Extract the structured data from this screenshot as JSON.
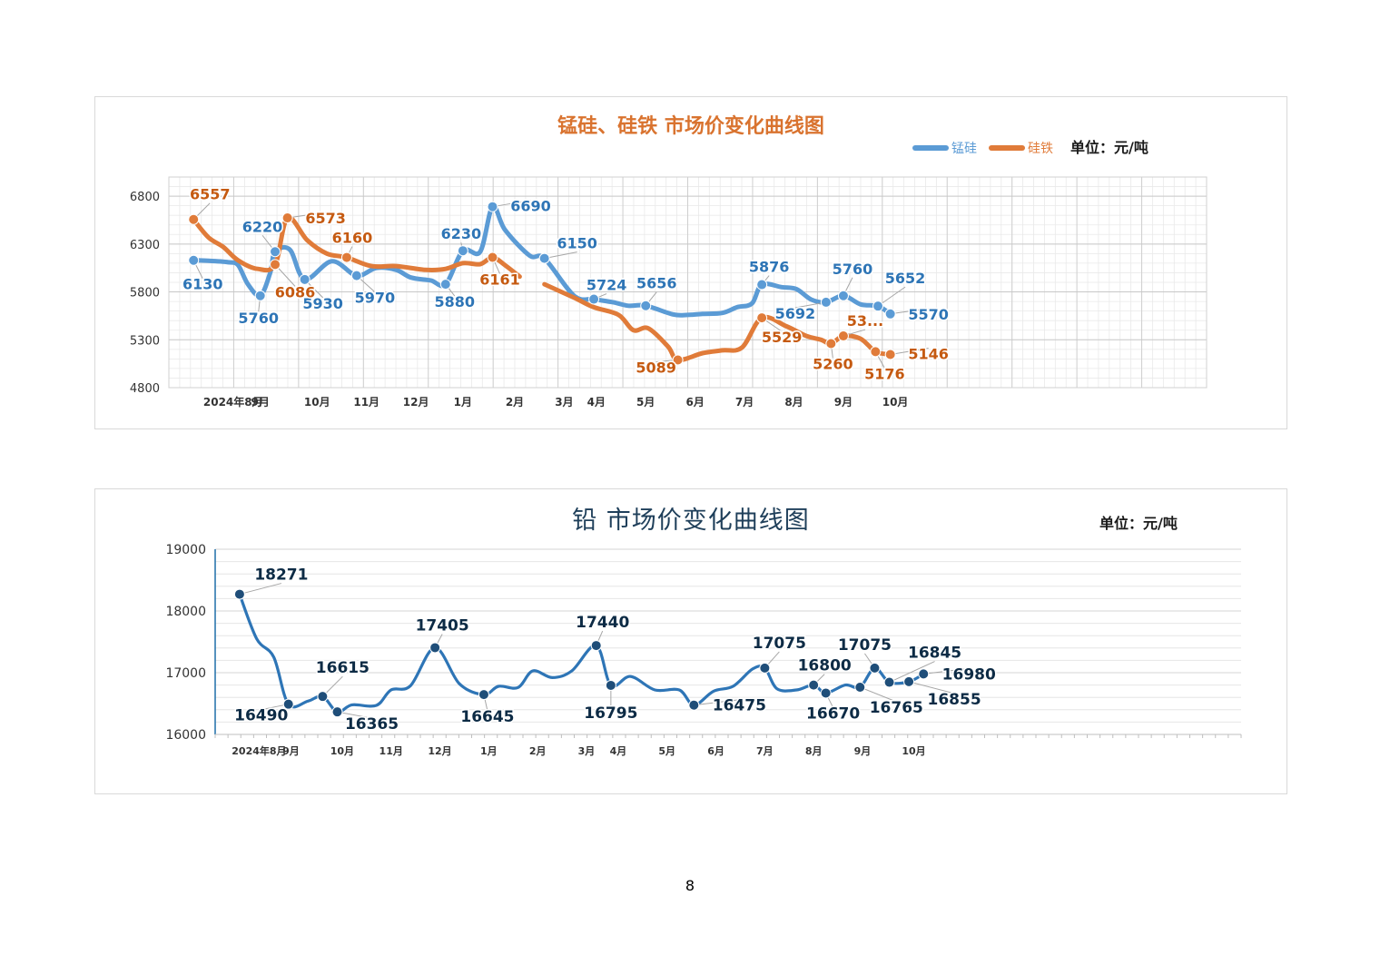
{
  "page_number": "8",
  "chart_data": [
    {
      "type": "line",
      "title": "锰硅、硅铁 市场价变化曲线图",
      "unit_label": "单位：元/吨",
      "legend_position": "top-right",
      "grid": true,
      "ylim": [
        4800,
        7000
      ],
      "yticks": [
        "6800",
        "6300",
        "5800",
        "5300",
        "4800"
      ],
      "xlim": [
        0,
        21
      ],
      "x_tick_labels": [
        {
          "x": 1.3,
          "label": "2024年8月"
        },
        {
          "x": 1.85,
          "label": "9月"
        },
        {
          "x": 3.0,
          "label": "10月"
        },
        {
          "x": 4.0,
          "label": "11月"
        },
        {
          "x": 5.0,
          "label": "12月"
        },
        {
          "x": 5.95,
          "label": "1月"
        },
        {
          "x": 7.0,
          "label": "2月"
        },
        {
          "x": 8.0,
          "label": "3月"
        },
        {
          "x": 8.65,
          "label": "4月"
        },
        {
          "x": 9.65,
          "label": "5月"
        },
        {
          "x": 10.65,
          "label": "6月"
        },
        {
          "x": 11.65,
          "label": "7月"
        },
        {
          "x": 12.65,
          "label": "8月"
        },
        {
          "x": 13.65,
          "label": "9月"
        },
        {
          "x": 14.7,
          "label": "10月"
        }
      ],
      "series": [
        {
          "name": "锰硅",
          "color": "#5b9bd5",
          "label_color": "#2e75b6",
          "points": [
            [
              0.5,
              6130
            ],
            [
              0.8,
              6125
            ],
            [
              1.2,
              6110
            ],
            [
              1.4,
              6080
            ],
            [
              1.6,
              5880
            ],
            [
              1.85,
              5760
            ],
            [
              2.05,
              6000
            ],
            [
              2.15,
              6220
            ],
            [
              2.45,
              6240
            ],
            [
              2.75,
              5930
            ],
            [
              3.3,
              6120
            ],
            [
              3.8,
              5970
            ],
            [
              4.2,
              6050
            ],
            [
              4.6,
              6030
            ],
            [
              4.9,
              5950
            ],
            [
              5.3,
              5920
            ],
            [
              5.6,
              5880
            ],
            [
              5.95,
              6230
            ],
            [
              6.3,
              6220
            ],
            [
              6.55,
              6690
            ],
            [
              6.8,
              6450
            ],
            [
              7.3,
              6180
            ],
            [
              7.6,
              6150
            ],
            [
              8.2,
              5760
            ],
            [
              8.6,
              5724
            ],
            [
              9.0,
              5690
            ],
            [
              9.3,
              5655
            ],
            [
              9.65,
              5656
            ],
            [
              10.2,
              5565
            ],
            [
              10.5,
              5560
            ],
            [
              10.8,
              5570
            ],
            [
              11.2,
              5580
            ],
            [
              11.5,
              5640
            ],
            [
              11.8,
              5680
            ],
            [
              12.0,
              5876
            ],
            [
              12.4,
              5850
            ],
            [
              12.7,
              5830
            ],
            [
              13.0,
              5720
            ],
            [
              13.3,
              5692
            ],
            [
              13.65,
              5760
            ],
            [
              14.0,
              5670
            ],
            [
              14.35,
              5652
            ],
            [
              14.6,
              5570
            ]
          ],
          "labels": [
            {
              "x": 0.5,
              "y": 6130,
              "text": "6130",
              "dx": 10,
              "dy": 32
            },
            {
              "x": 1.85,
              "y": 5760,
              "text": "5760",
              "dx": -2,
              "dy": 30
            },
            {
              "x": 2.15,
              "y": 6220,
              "text": "6220",
              "dx": -14,
              "dy": -22
            },
            {
              "x": 2.75,
              "y": 5930,
              "text": "5930",
              "dx": 20,
              "dy": 32
            },
            {
              "x": 3.8,
              "y": 5970,
              "text": "5970",
              "dx": 20,
              "dy": 30
            },
            {
              "x": 5.6,
              "y": 5880,
              "text": "5880",
              "dx": 10,
              "dy": 25
            },
            {
              "x": 5.95,
              "y": 6230,
              "text": "6230",
              "dx": -2,
              "dy": -13
            },
            {
              "x": 6.55,
              "y": 6690,
              "text": "6690",
              "dx": 42,
              "dy": 5
            },
            {
              "x": 7.6,
              "y": 6150,
              "text": "6150",
              "dx": 36,
              "dy": -11
            },
            {
              "x": 8.6,
              "y": 5724,
              "text": "5724",
              "dx": 14,
              "dy": -10
            },
            {
              "x": 9.65,
              "y": 5656,
              "text": "5656",
              "dx": 12,
              "dy": -19
            },
            {
              "x": 12.0,
              "y": 5876,
              "text": "5876",
              "dx": 8,
              "dy": -14
            },
            {
              "x": 13.3,
              "y": 5692,
              "text": "5692",
              "dx": -34,
              "dy": 18
            },
            {
              "x": 13.65,
              "y": 5760,
              "text": "5760",
              "dx": 10,
              "dy": -24
            },
            {
              "x": 14.35,
              "y": 5652,
              "text": "5652",
              "dx": 30,
              "dy": -25
            },
            {
              "x": 14.6,
              "y": 5570,
              "text": "5570",
              "dx": 42,
              "dy": 6
            }
          ],
          "markers": [
            0.5,
            1.85,
            2.15,
            2.75,
            3.8,
            5.6,
            5.95,
            6.55,
            7.6,
            8.6,
            9.65,
            12.0,
            13.3,
            13.65,
            14.35,
            14.6
          ]
        },
        {
          "name": "硅铁",
          "color": "#e07b39",
          "label_color": "#c55a11",
          "segments": [
            [
              [
                0.5,
                6557
              ],
              [
                0.8,
                6370
              ],
              [
                1.1,
                6270
              ],
              [
                1.4,
                6130
              ],
              [
                1.8,
                6040
              ],
              [
                2.15,
                6086
              ],
              [
                2.4,
                6573
              ],
              [
                2.8,
                6340
              ],
              [
                3.2,
                6200
              ],
              [
                3.6,
                6160
              ],
              [
                4.1,
                6070
              ],
              [
                4.6,
                6070
              ],
              [
                5.2,
                6030
              ],
              [
                5.6,
                6040
              ],
              [
                5.95,
                6100
              ],
              [
                6.3,
                6090
              ],
              [
                6.55,
                6161
              ],
              [
                6.8,
                6080
              ],
              [
                7.1,
                5960
              ]
            ],
            [
              [
                7.6,
                5880
              ],
              [
                8.2,
                5740
              ],
              [
                8.6,
                5640
              ],
              [
                9.1,
                5560
              ],
              [
                9.4,
                5400
              ],
              [
                9.7,
                5420
              ],
              [
                10.1,
                5230
              ],
              [
                10.3,
                5089
              ],
              [
                10.8,
                5160
              ],
              [
                11.2,
                5190
              ],
              [
                11.6,
                5220
              ],
              [
                12.0,
                5529
              ],
              [
                12.5,
                5440
              ],
              [
                12.9,
                5340
              ],
              [
                13.2,
                5300
              ],
              [
                13.4,
                5260
              ],
              [
                13.65,
                5340
              ],
              [
                14.0,
                5310
              ],
              [
                14.3,
                5176
              ],
              [
                14.6,
                5146
              ]
            ]
          ],
          "labels": [
            {
              "x": 0.5,
              "y": 6557,
              "text": "6557",
              "dx": 18,
              "dy": -22
            },
            {
              "x": 2.15,
              "y": 6086,
              "text": "6086",
              "dx": 22,
              "dy": 36
            },
            {
              "x": 2.4,
              "y": 6573,
              "text": "6573",
              "dx": 42,
              "dy": 6
            },
            {
              "x": 3.6,
              "y": 6160,
              "text": "6160",
              "dx": 6,
              "dy": -16
            },
            {
              "x": 6.55,
              "y": 6161,
              "text": "6161",
              "dx": 8,
              "dy": 30
            },
            {
              "x": 10.3,
              "y": 5089,
              "text": "5089",
              "dx": -24,
              "dy": 14
            },
            {
              "x": 12.0,
              "y": 5529,
              "text": "5529",
              "dx": 22,
              "dy": 27
            },
            {
              "x": 13.4,
              "y": 5260,
              "text": "5260",
              "dx": 2,
              "dy": 28
            },
            {
              "x": 13.65,
              "y": 5340,
              "text": "53...",
              "dx": 24,
              "dy": -11
            },
            {
              "x": 14.3,
              "y": 5176,
              "text": "5176",
              "dx": 10,
              "dy": 30
            },
            {
              "x": 14.6,
              "y": 5146,
              "text": "5146",
              "dx": 42,
              "dy": 5
            }
          ],
          "markers": [
            0.5,
            2.15,
            2.4,
            3.6,
            6.55,
            10.3,
            12.0,
            13.4,
            13.65,
            14.3,
            14.6
          ]
        }
      ]
    },
    {
      "type": "line",
      "title": "铅 市场价变化曲线图",
      "unit_label": "单位：元/吨",
      "grid": true,
      "ylim": [
        16000,
        19000
      ],
      "yticks": [
        "19000",
        "18000",
        "17000",
        "16000"
      ],
      "xlim": [
        0,
        21
      ],
      "x_tick_labels": [
        {
          "x": 0.9,
          "label": "2024年8月"
        },
        {
          "x": 1.55,
          "label": "9月"
        },
        {
          "x": 2.6,
          "label": "10月"
        },
        {
          "x": 3.6,
          "label": "11月"
        },
        {
          "x": 4.6,
          "label": "12月"
        },
        {
          "x": 5.6,
          "label": "1月"
        },
        {
          "x": 6.6,
          "label": "2月"
        },
        {
          "x": 7.6,
          "label": "3月"
        },
        {
          "x": 8.25,
          "label": "4月"
        },
        {
          "x": 9.25,
          "label": "5月"
        },
        {
          "x": 10.25,
          "label": "6月"
        },
        {
          "x": 11.25,
          "label": "7月"
        },
        {
          "x": 12.25,
          "label": "8月"
        },
        {
          "x": 13.25,
          "label": "9月"
        },
        {
          "x": 14.3,
          "label": "10月"
        }
      ],
      "series": [
        {
          "name": "铅",
          "color": "#2e75b6",
          "label_color": "#0d2b45",
          "marker_color": "#1f4e79",
          "points": [
            [
              0.5,
              18271
            ],
            [
              0.85,
              17550
            ],
            [
              1.2,
              17250
            ],
            [
              1.5,
              16490
            ],
            [
              1.9,
              16540
            ],
            [
              2.2,
              16615
            ],
            [
              2.5,
              16365
            ],
            [
              2.8,
              16480
            ],
            [
              3.3,
              16470
            ],
            [
              3.6,
              16720
            ],
            [
              4.0,
              16790
            ],
            [
              4.5,
              17405
            ],
            [
              5.0,
              16820
            ],
            [
              5.5,
              16645
            ],
            [
              5.8,
              16780
            ],
            [
              6.2,
              16760
            ],
            [
              6.5,
              17030
            ],
            [
              6.9,
              16920
            ],
            [
              7.3,
              17030
            ],
            [
              7.8,
              17440
            ],
            [
              8.1,
              16795
            ],
            [
              8.5,
              16940
            ],
            [
              9.0,
              16720
            ],
            [
              9.5,
              16720
            ],
            [
              9.8,
              16475
            ],
            [
              10.2,
              16700
            ],
            [
              10.6,
              16780
            ],
            [
              11.0,
              17060
            ],
            [
              11.25,
              17075
            ],
            [
              11.5,
              16740
            ],
            [
              11.9,
              16720
            ],
            [
              12.25,
              16800
            ],
            [
              12.5,
              16670
            ],
            [
              12.9,
              16800
            ],
            [
              13.2,
              16765
            ],
            [
              13.5,
              17075
            ],
            [
              13.8,
              16845
            ],
            [
              14.2,
              16855
            ],
            [
              14.5,
              16980
            ]
          ],
          "labels": [
            {
              "x": 0.5,
              "y": 18271,
              "text": "18271",
              "dx": 46,
              "dy": -16
            },
            {
              "x": 1.5,
              "y": 16490,
              "text": "16490",
              "dx": -30,
              "dy": 18
            },
            {
              "x": 2.2,
              "y": 16615,
              "text": "16615",
              "dx": 22,
              "dy": -26
            },
            {
              "x": 2.5,
              "y": 16365,
              "text": "16365",
              "dx": 38,
              "dy": 19
            },
            {
              "x": 4.5,
              "y": 17405,
              "text": "17405",
              "dx": 8,
              "dy": -19
            },
            {
              "x": 5.5,
              "y": 16645,
              "text": "16645",
              "dx": 4,
              "dy": 30
            },
            {
              "x": 7.8,
              "y": 17440,
              "text": "17440",
              "dx": 7,
              "dy": -20
            },
            {
              "x": 8.1,
              "y": 16795,
              "text": "16795",
              "dx": 0,
              "dy": 36
            },
            {
              "x": 9.8,
              "y": 16475,
              "text": "16475",
              "dx": 50,
              "dy": 6
            },
            {
              "x": 11.25,
              "y": 17075,
              "text": "17075",
              "dx": 16,
              "dy": -22
            },
            {
              "x": 12.25,
              "y": 16800,
              "text": "16800",
              "dx": 12,
              "dy": -16
            },
            {
              "x": 12.5,
              "y": 16670,
              "text": "16670",
              "dx": 8,
              "dy": 28
            },
            {
              "x": 13.2,
              "y": 16765,
              "text": "16765",
              "dx": 40,
              "dy": 28
            },
            {
              "x": 13.5,
              "y": 17075,
              "text": "17075",
              "dx": -11,
              "dy": -20
            },
            {
              "x": 13.8,
              "y": 16845,
              "text": "16845",
              "dx": 50,
              "dy": -27
            },
            {
              "x": 14.2,
              "y": 16855,
              "text": "16855",
              "dx": 50,
              "dy": 25
            },
            {
              "x": 14.5,
              "y": 16980,
              "text": "16980",
              "dx": 50,
              "dy": 6
            }
          ],
          "markers": [
            0.5,
            1.5,
            2.2,
            2.5,
            4.5,
            5.5,
            7.8,
            8.1,
            9.8,
            11.25,
            12.25,
            12.5,
            13.2,
            13.5,
            13.8,
            14.2,
            14.5
          ]
        }
      ]
    }
  ]
}
